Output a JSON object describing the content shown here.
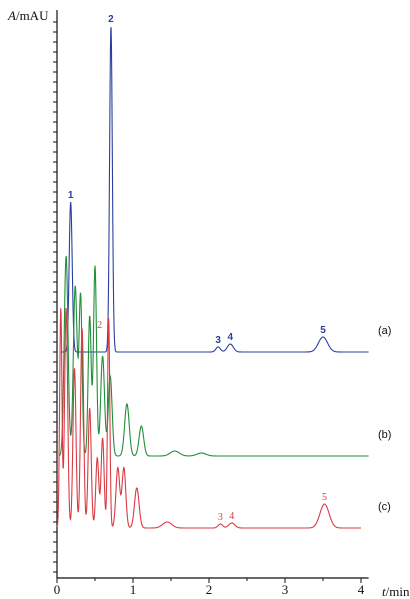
{
  "chart_data": {
    "type": "line",
    "y_axis_label_symbol": "A",
    "y_axis_label_unit": "/mAU",
    "x_axis_label_symbol": "t",
    "x_axis_label_unit": "/min",
    "x_ticks": [
      "0",
      "1",
      "2",
      "3",
      "4"
    ],
    "xlim": [
      0,
      4.1
    ],
    "y_ticks_labeled": false,
    "colors": {
      "a": "#2a3f9e",
      "b": "#1f8f3a",
      "c": "#d93b44",
      "axis": "#111111"
    },
    "series": [
      {
        "name": "(a)",
        "baseline": 0.5,
        "peaks": [
          {
            "label": "1",
            "t": 0.18,
            "height": 7.5,
            "width": 0.02
          },
          {
            "label": "2",
            "t": 0.71,
            "height": 16.3,
            "width": 0.018
          },
          {
            "label": "3",
            "t": 2.12,
            "height": 0.25,
            "width": 0.03
          },
          {
            "label": "4",
            "t": 2.28,
            "height": 0.4,
            "width": 0.04
          },
          {
            "label": "5",
            "t": 3.5,
            "height": 0.75,
            "width": 0.06
          }
        ]
      },
      {
        "name": "(b)",
        "baseline": -4.7,
        "peaks": [
          {
            "t": 0.12,
            "height": 10.0,
            "width": 0.025
          },
          {
            "t": 0.24,
            "height": 8.5,
            "width": 0.025
          },
          {
            "t": 0.31,
            "height": 8.0,
            "width": 0.02
          },
          {
            "t": 0.43,
            "height": 7.0,
            "width": 0.02
          },
          {
            "t": 0.5,
            "height": 9.5,
            "width": 0.02
          },
          {
            "t": 0.6,
            "height": 5.0,
            "width": 0.025
          },
          {
            "t": 0.7,
            "height": 4.0,
            "width": 0.025
          },
          {
            "t": 0.92,
            "height": 2.6,
            "width": 0.03
          },
          {
            "t": 1.11,
            "height": 1.5,
            "width": 0.03
          },
          {
            "t": 1.55,
            "height": 0.25,
            "width": 0.06
          },
          {
            "t": 1.9,
            "height": 0.15,
            "width": 0.06
          }
        ]
      },
      {
        "name": "(c)",
        "baseline": -8.3,
        "peaks": [
          {
            "label": "2",
            "t": 0.68,
            "height": 10.5,
            "width": 0.015
          },
          {
            "t": 0.05,
            "height": 11.0,
            "width": 0.015
          },
          {
            "t": 0.12,
            "height": 11.0,
            "width": 0.02
          },
          {
            "t": 0.23,
            "height": 8.0,
            "width": 0.02
          },
          {
            "t": 0.33,
            "height": 10.0,
            "width": 0.02
          },
          {
            "t": 0.43,
            "height": 6.0,
            "width": 0.02
          },
          {
            "t": 0.53,
            "height": 3.5,
            "width": 0.02
          },
          {
            "t": 0.6,
            "height": 4.5,
            "width": 0.02
          },
          {
            "t": 0.8,
            "height": 3.0,
            "width": 0.025
          },
          {
            "t": 0.88,
            "height": 3.0,
            "width": 0.025
          },
          {
            "t": 1.05,
            "height": 2.0,
            "width": 0.03
          },
          {
            "t": 1.45,
            "height": 0.3,
            "width": 0.06
          },
          {
            "label": "3",
            "t": 2.15,
            "height": 0.2,
            "width": 0.03
          },
          {
            "label": "4",
            "t": 2.3,
            "height": 0.25,
            "width": 0.04
          },
          {
            "label": "5",
            "t": 3.52,
            "height": 1.2,
            "width": 0.06
          }
        ]
      }
    ]
  }
}
